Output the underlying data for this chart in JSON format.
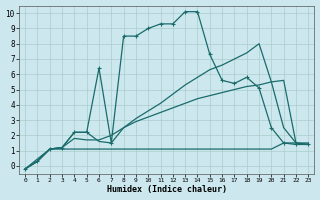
{
  "xlabel": "Humidex (Indice chaleur)",
  "bg_color": "#cce8ee",
  "grid_color": "#aacccc",
  "line_color": "#1a6b6b",
  "xlim": [
    -0.5,
    23.5
  ],
  "ylim": [
    -0.5,
    10.5
  ],
  "xticks": [
    0,
    1,
    2,
    3,
    4,
    5,
    6,
    7,
    8,
    9,
    10,
    11,
    12,
    13,
    14,
    15,
    16,
    17,
    18,
    19,
    20,
    21,
    22,
    23
  ],
  "yticks": [
    0,
    1,
    2,
    3,
    4,
    5,
    6,
    7,
    8,
    9,
    10
  ],
  "series": [
    {
      "x": [
        0,
        1,
        2,
        3,
        4,
        5,
        6,
        7,
        8,
        9,
        10,
        11,
        12,
        13,
        14,
        15,
        16,
        17,
        18,
        19,
        20,
        21,
        22,
        23
      ],
      "y": [
        -0.2,
        0.3,
        1.1,
        1.1,
        1.1,
        1.1,
        1.1,
        1.1,
        1.1,
        1.1,
        1.1,
        1.1,
        1.1,
        1.1,
        1.1,
        1.1,
        1.1,
        1.1,
        1.1,
        1.1,
        1.1,
        1.5,
        1.5,
        1.5
      ],
      "marker": null,
      "linestyle": "-",
      "linewidth": 0.9
    },
    {
      "x": [
        0,
        1,
        2,
        3,
        4,
        5,
        6,
        7,
        8,
        9,
        10,
        11,
        12,
        13,
        14,
        15,
        16,
        17,
        18,
        19,
        20,
        21,
        22,
        23
      ],
      "y": [
        -0.2,
        0.3,
        1.1,
        1.2,
        1.8,
        1.7,
        1.7,
        2.0,
        2.5,
        2.9,
        3.2,
        3.5,
        3.8,
        4.1,
        4.4,
        4.6,
        4.8,
        5.0,
        5.2,
        5.3,
        5.5,
        2.5,
        1.5,
        1.4
      ],
      "marker": null,
      "linestyle": "-",
      "linewidth": 0.9
    },
    {
      "x": [
        0,
        2,
        3,
        4,
        5,
        6,
        7,
        8,
        9,
        10,
        11,
        12,
        13,
        14,
        15,
        16,
        17,
        18,
        19,
        20,
        21,
        22,
        23
      ],
      "y": [
        -0.2,
        1.1,
        1.2,
        2.2,
        2.2,
        1.6,
        1.5,
        2.5,
        3.1,
        3.6,
        4.1,
        4.7,
        5.3,
        5.8,
        6.3,
        6.6,
        7.0,
        7.4,
        8.0,
        5.5,
        5.6,
        1.5,
        1.4
      ],
      "marker": null,
      "linestyle": "-",
      "linewidth": 0.9
    },
    {
      "x": [
        0,
        1,
        2,
        3,
        4,
        5,
        6,
        7,
        8,
        9,
        10,
        11,
        12,
        13,
        14,
        15,
        16,
        17,
        18,
        19,
        20,
        21,
        22,
        23
      ],
      "y": [
        -0.2,
        0.3,
        1.1,
        1.2,
        2.2,
        2.2,
        6.4,
        1.5,
        8.5,
        8.5,
        9.0,
        9.3,
        9.3,
        10.1,
        10.1,
        7.3,
        5.6,
        5.4,
        5.8,
        5.1,
        2.5,
        1.5,
        1.4,
        1.4
      ],
      "marker": "+",
      "linestyle": "-",
      "linewidth": 0.9
    }
  ]
}
